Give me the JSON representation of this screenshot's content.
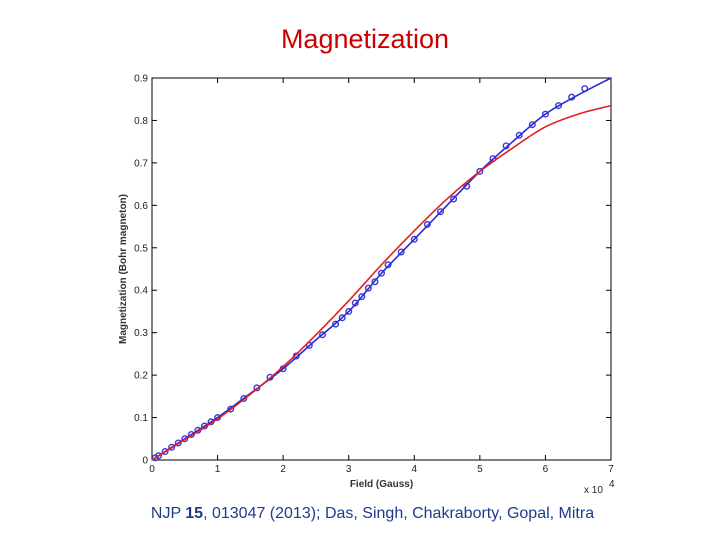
{
  "slide": {
    "title": "Magnetization",
    "citation": {
      "prefix": "NJP ",
      "volume": "15",
      "suffix": ", 013047 (2013); Das, Singh, Chakraborty, Gopal, Mitra"
    }
  },
  "colors": {
    "title": "#cc0000",
    "citation": "#1f3c8a",
    "series_fit_blue": "#2b2bd0",
    "series_fit_red": "#e02020",
    "markers": "#3a3ad8"
  },
  "chart_data": {
    "type": "line",
    "title": "",
    "xlabel": "Field (Gauss)",
    "ylabel": "Magnetization (Bohr magneton)",
    "x_multiplier_label": "x 10",
    "x_multiplier_exponent": "4",
    "xlim": [
      0,
      7
    ],
    "ylim": [
      0,
      0.9
    ],
    "xticks": [
      0,
      1,
      2,
      3,
      4,
      5,
      6,
      7
    ],
    "xtick_labels": [
      "0",
      "1",
      "2",
      "3",
      "4",
      "5",
      "6",
      "7"
    ],
    "yticks": [
      0,
      0.1,
      0.2,
      0.3,
      0.4,
      0.5,
      0.6,
      0.7,
      0.8,
      0.9
    ],
    "ytick_labels": [
      "0",
      "0.1",
      "0.2",
      "0.3",
      "0.4",
      "0.5",
      "0.6",
      "0.7",
      "0.8",
      "0.9"
    ],
    "grid": false,
    "series": [
      {
        "kind": "scatter",
        "color": "#3a3ad8",
        "x": [
          0.05,
          0.1,
          0.2,
          0.3,
          0.4,
          0.5,
          0.6,
          0.7,
          0.8,
          0.9,
          1.0,
          1.2,
          1.4,
          1.6,
          1.8,
          2.0,
          2.2,
          2.4,
          2.6,
          2.8,
          2.9,
          3.0,
          3.1,
          3.2,
          3.3,
          3.4,
          3.5,
          3.6,
          3.8,
          4.0,
          4.2,
          4.4,
          4.6,
          4.8,
          5.0,
          5.2,
          5.4,
          5.6,
          5.8,
          6.0,
          6.2,
          6.4,
          6.6
        ],
        "y": [
          0.005,
          0.01,
          0.02,
          0.03,
          0.04,
          0.05,
          0.06,
          0.07,
          0.08,
          0.09,
          0.1,
          0.12,
          0.145,
          0.17,
          0.195,
          0.215,
          0.245,
          0.27,
          0.295,
          0.32,
          0.335,
          0.35,
          0.37,
          0.385,
          0.405,
          0.42,
          0.44,
          0.46,
          0.49,
          0.52,
          0.555,
          0.585,
          0.615,
          0.645,
          0.68,
          0.71,
          0.74,
          0.765,
          0.79,
          0.815,
          0.835,
          0.855,
          0.875
        ]
      },
      {
        "kind": "line",
        "color": "#2b2bd0",
        "x": [
          0,
          0.5,
          1.0,
          1.5,
          2.0,
          2.5,
          3.0,
          3.5,
          4.0,
          4.5,
          5.0,
          5.5,
          6.0,
          6.5,
          7.0
        ],
        "y": [
          0,
          0.05,
          0.1,
          0.157,
          0.215,
          0.283,
          0.35,
          0.44,
          0.52,
          0.6,
          0.68,
          0.75,
          0.815,
          0.86,
          0.9
        ]
      },
      {
        "kind": "line",
        "color": "#e02020",
        "x": [
          0,
          0.5,
          1.0,
          1.5,
          2.0,
          2.5,
          3.0,
          3.5,
          4.0,
          4.5,
          5.0,
          5.5,
          6.0,
          6.5,
          7.0
        ],
        "y": [
          0,
          0.048,
          0.097,
          0.155,
          0.22,
          0.295,
          0.375,
          0.46,
          0.54,
          0.615,
          0.68,
          0.735,
          0.785,
          0.815,
          0.835
        ]
      }
    ]
  }
}
